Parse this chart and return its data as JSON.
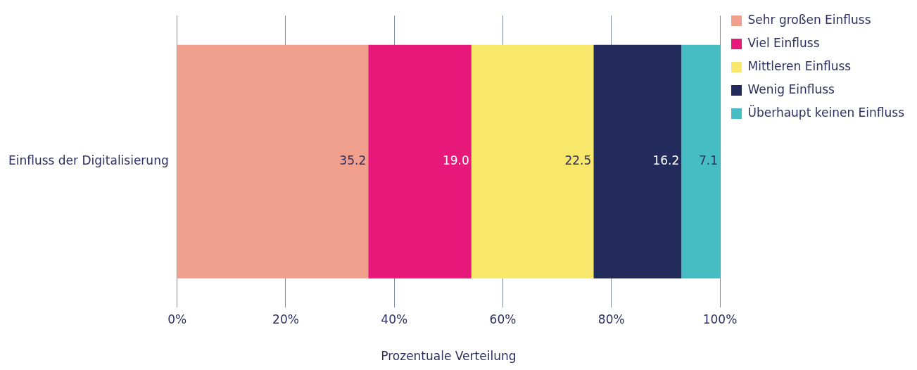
{
  "chart_data": {
    "type": "bar",
    "orientation": "horizontal",
    "stacked": true,
    "categories": [
      "Einfluss der Digitalisierung"
    ],
    "xlabel": "Prozentuale Verteilung",
    "xlim": [
      0,
      100
    ],
    "xticks": [
      {
        "value": 0,
        "label": "0%"
      },
      {
        "value": 20,
        "label": "20%"
      },
      {
        "value": 40,
        "label": "40%"
      },
      {
        "value": 60,
        "label": "60%"
      },
      {
        "value": 80,
        "label": "80%"
      },
      {
        "value": 100,
        "label": "100%"
      }
    ],
    "grid": "x",
    "legend": "top right",
    "series": [
      {
        "name": "Sehr großen Einfluss",
        "color": "#f1a08e",
        "values": [
          35.2
        ],
        "value_labels": [
          "35.2"
        ]
      },
      {
        "name": "Viel Einfluss",
        "color": "#e6197a",
        "values": [
          19.0
        ],
        "value_labels": [
          "19.0"
        ]
      },
      {
        "name": "Mittleren Einfluss",
        "color": "#f7e86b",
        "values": [
          22.5
        ],
        "value_labels": [
          "22.5"
        ]
      },
      {
        "name": "Wenig Einfluss",
        "color": "#232a5c",
        "values": [
          16.2
        ],
        "value_labels": [
          "16.2"
        ]
      },
      {
        "name": "Überhaupt keinen Einfluss",
        "color": "#45bdc2",
        "values": [
          7.1
        ],
        "value_labels": [
          "7.1"
        ]
      }
    ]
  }
}
